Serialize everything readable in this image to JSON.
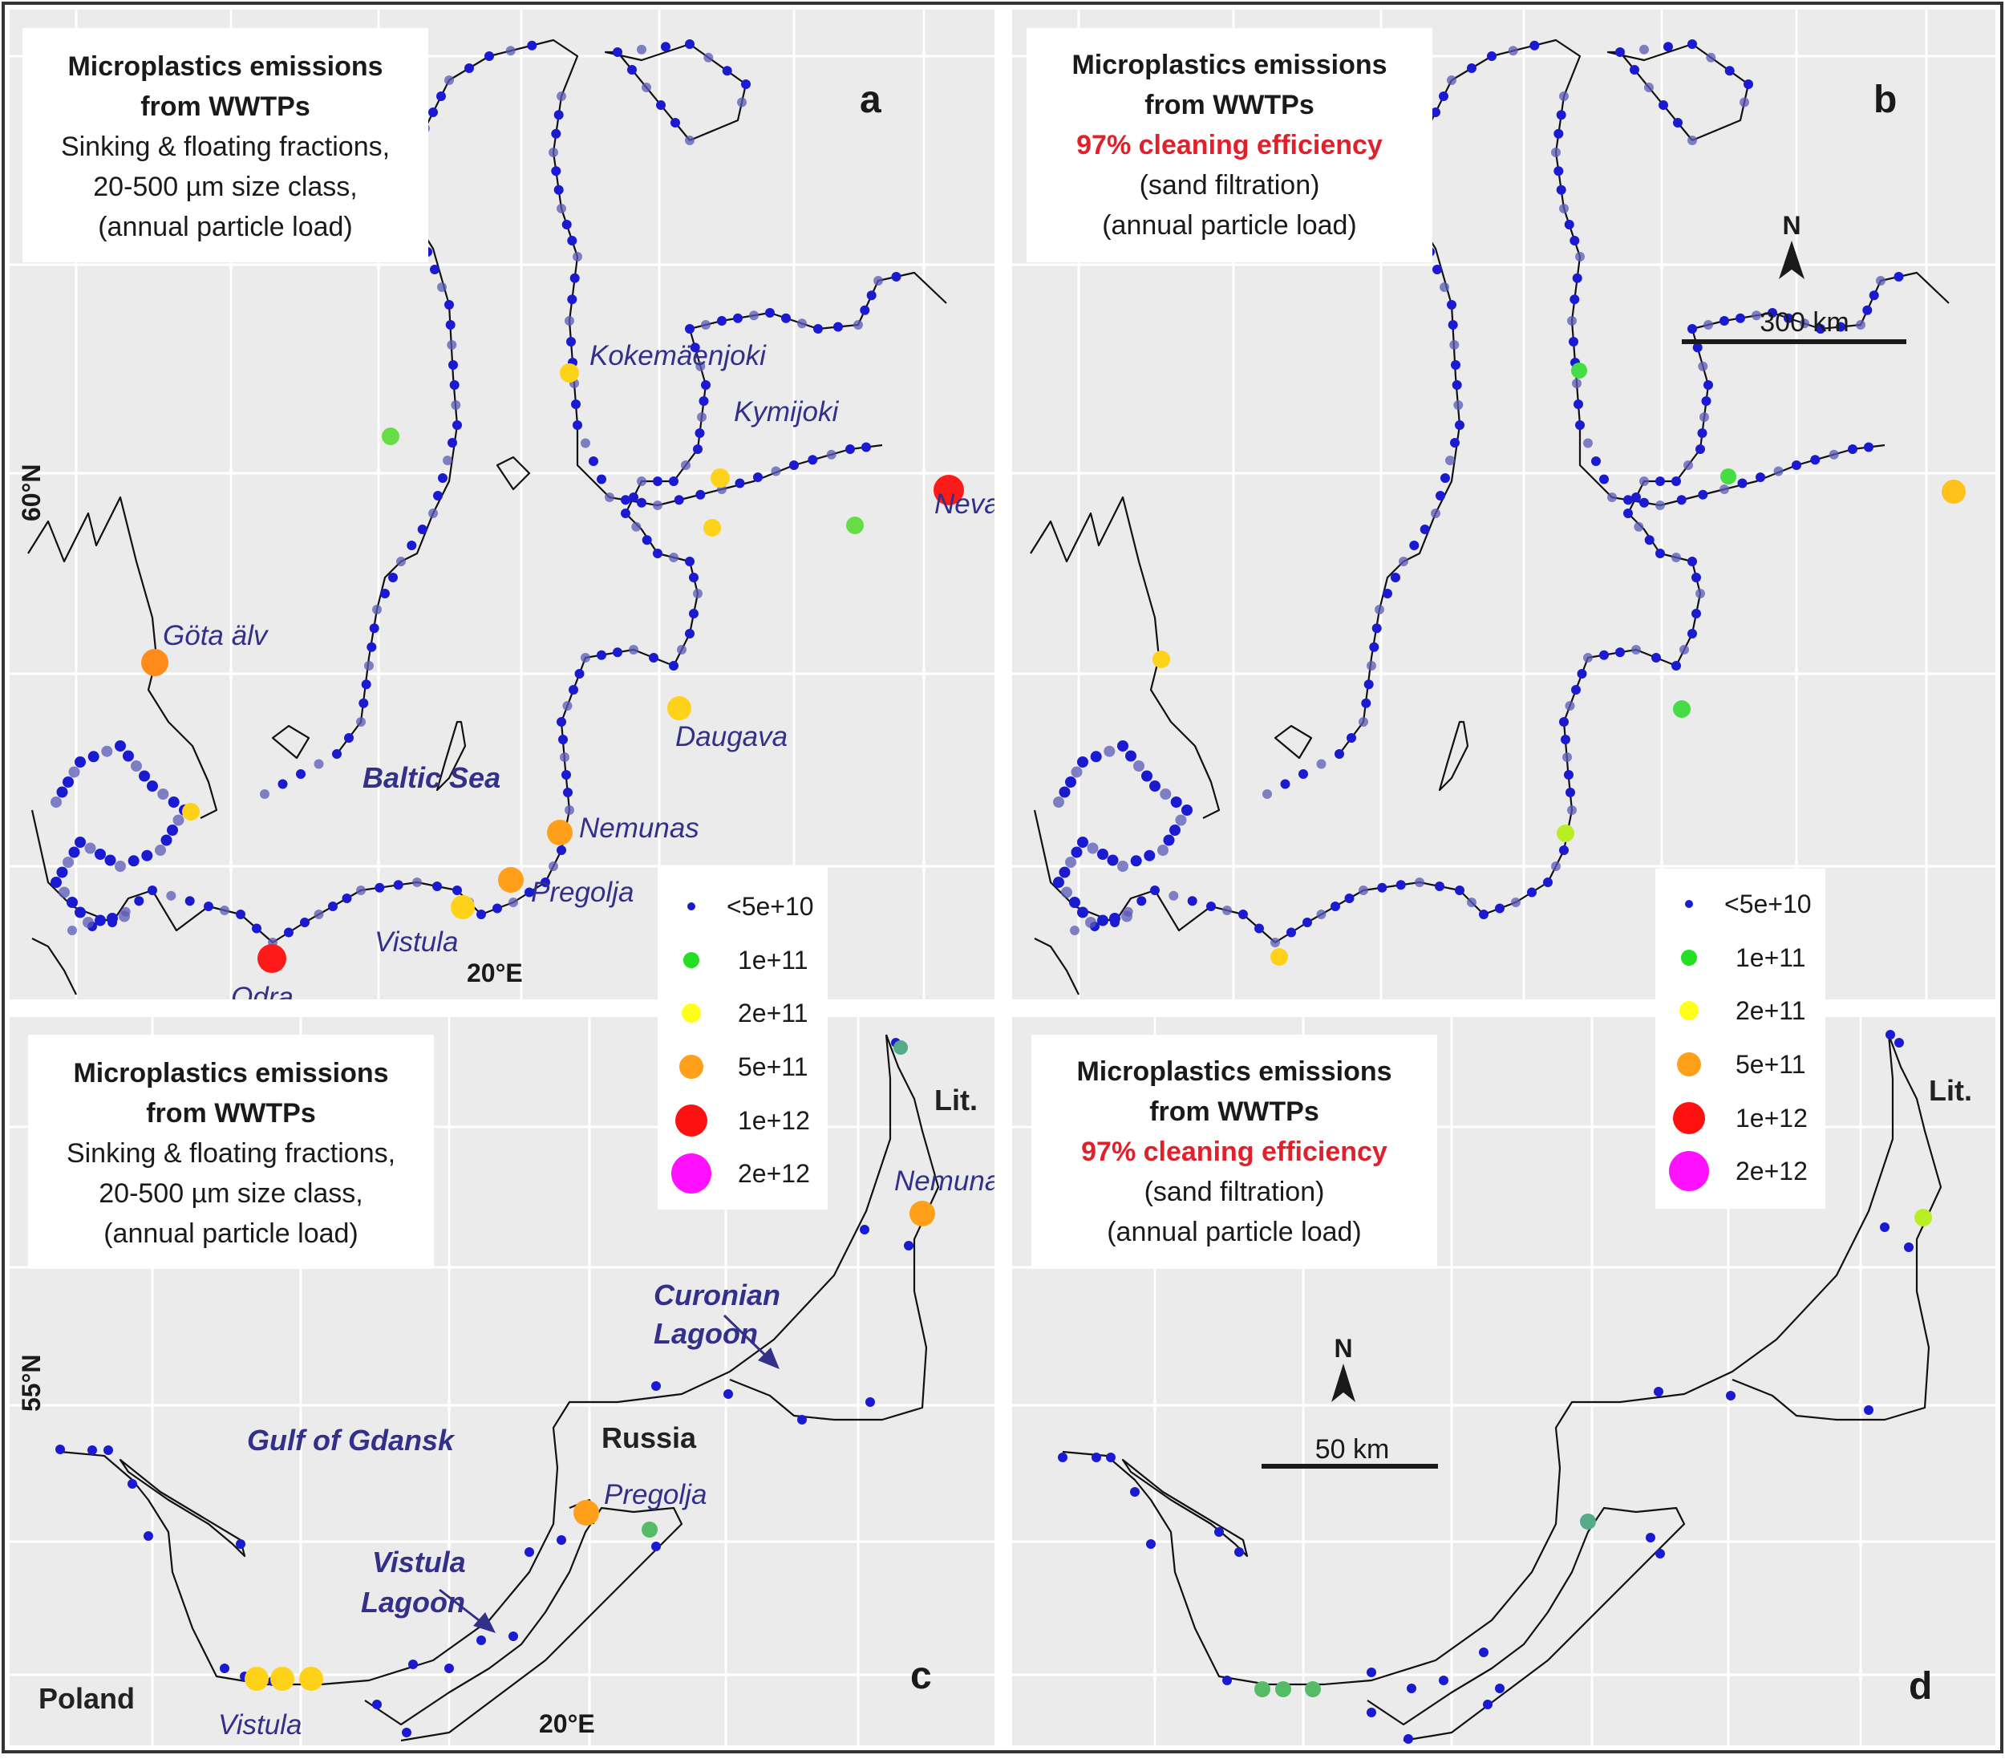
{
  "panels": {
    "a": {
      "letter": "a",
      "title": [
        "Microplastics emissions",
        "from WWTPs"
      ],
      "subtitle": [
        "Sinking & floating fractions,",
        "20-500 µm size class,",
        "(annual particle load)"
      ],
      "axis_lat": "60°N",
      "axis_lon": "20°E",
      "labels": {
        "kokemaenjoki": "Kokemäenjoki",
        "kymijoki": "Kymijoki",
        "neva": "Neva",
        "gota": "Göta älv",
        "daugava": "Daugava",
        "baltic": "Baltic Sea",
        "nemunas": "Nemunas",
        "pregolja": "Pregolja",
        "vistula": "Vistula",
        "odra": "Odra"
      }
    },
    "b": {
      "letter": "b",
      "title": [
        "Microplastics emissions",
        "from WWTPs"
      ],
      "efficiency": "97% cleaning efficiency",
      "subtitle": [
        "(sand filtration)",
        "(annual particle load)"
      ],
      "north": "N",
      "scale": "300 km"
    },
    "c": {
      "letter": "c",
      "title": [
        "Microplastics emissions",
        "from WWTPs"
      ],
      "subtitle": [
        "Sinking & floating fractions,",
        "20-500 µm size class,",
        "(annual particle load)"
      ],
      "axis_lat": "55°N",
      "axis_lon": "20°E",
      "labels": {
        "lit": "Lit.",
        "nemunas": "Nemunas",
        "curonian": [
          "Curonian",
          "Lagoon"
        ],
        "gulf": "Gulf of Gdansk",
        "russia": "Russia",
        "pregolja": "Pregolja",
        "vistula_lagoon": [
          "Vistula",
          "Lagoon"
        ],
        "poland": "Poland",
        "vistula": "Vistula"
      }
    },
    "d": {
      "letter": "d",
      "title": [
        "Microplastics emissions",
        "from WWTPs"
      ],
      "efficiency": "97% cleaning efficiency",
      "subtitle": [
        "(sand filtration)",
        "(annual particle load)"
      ],
      "north": "N",
      "scale": "50 km",
      "labels": {
        "lit": "Lit."
      }
    }
  },
  "legend": {
    "items": [
      {
        "label": "<5e+10",
        "color": "#1a1ad0"
      },
      {
        "label": "1e+11",
        "color": "#22e022"
      },
      {
        "label": "2e+11",
        "color": "#ffff1a"
      },
      {
        "label": "5e+11",
        "color": "#ff9f1a"
      },
      {
        "label": "1e+12",
        "color": "#ff1010"
      },
      {
        "label": "2e+12",
        "color": "#ff10ff"
      }
    ]
  },
  "colors": {
    "wwtp_small": "#1a1ad0",
    "wwtp_small_faded": "#5a5ab8",
    "label_blue": "#33308a",
    "title_red": "#e0202a",
    "panel_bg": "#ebebeb",
    "grid": "#ffffff"
  }
}
